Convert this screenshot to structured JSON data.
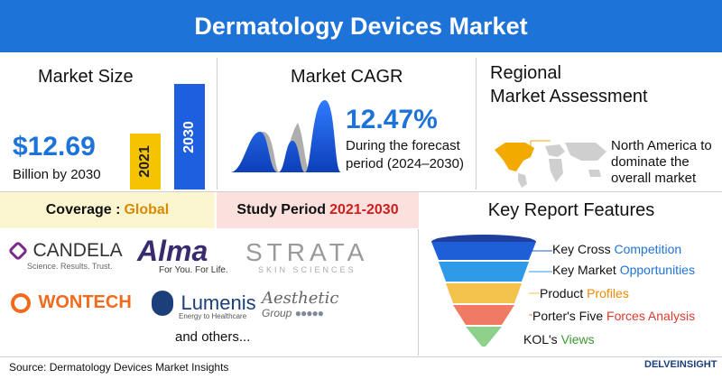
{
  "header": {
    "title": "Dermatology Devices Market"
  },
  "market_size": {
    "title": "Market Size",
    "value": "$12.69",
    "caption": "Billion by 2030",
    "bars": [
      {
        "label": "2021",
        "color": "#f5c400"
      },
      {
        "label": "2030",
        "color": "#1e5fe0"
      }
    ]
  },
  "cagr": {
    "title": "Market CAGR",
    "value": "12.47%",
    "caption_line1": "During the forecast",
    "caption_line2": "period (2024–2030)"
  },
  "regional": {
    "title_line1": "Regional",
    "title_line2": "Market Assessment",
    "caption_line1": "North America to",
    "caption_line2": "dominate the",
    "caption_line3": "overall market"
  },
  "coverage": {
    "label": "Coverage : ",
    "value": "Global"
  },
  "study_period": {
    "label": "Study Period ",
    "value": "2021-2030"
  },
  "key_features": {
    "title": "Key Report Features",
    "items": [
      {
        "text": "Key Cross ",
        "highlight": "Competition",
        "color": "#1e73d8",
        "hlcolor": "#1e73d8"
      },
      {
        "text": "Key Market ",
        "highlight": "Opportunities",
        "color": "#2f9be8",
        "hlcolor": "#1e73d8"
      },
      {
        "text": "Product ",
        "highlight": "Profiles",
        "color": "#f2c24a",
        "hlcolor": "#f08a00"
      },
      {
        "text": "Porter's Five ",
        "highlight": "Forces Analysis",
        "color": "#f07a62",
        "hlcolor": "#e0392f"
      },
      {
        "text": "KOL's ",
        "highlight": "Views",
        "color": "#8fd18a",
        "hlcolor": "#3a9a35"
      }
    ]
  },
  "companies": {
    "candela": "CANDELA",
    "candela_tag": "Science. Results. Trust.",
    "alma": "Alma",
    "alma_tag": "For You. For Life.",
    "strata": "STRATA",
    "strata_tag": "SKIN SCIENCES",
    "wontech": "WONTECH",
    "lumenis": "Lumenis",
    "lumenis_tag": "Energy to Healthcare",
    "aesthetic": "Aesthetic",
    "aesthetic_tag": "Group",
    "others": "and others..."
  },
  "footer": {
    "source": "Source: Dermatology Devices Market Insights",
    "brand": "DELVEINSIGHT"
  }
}
